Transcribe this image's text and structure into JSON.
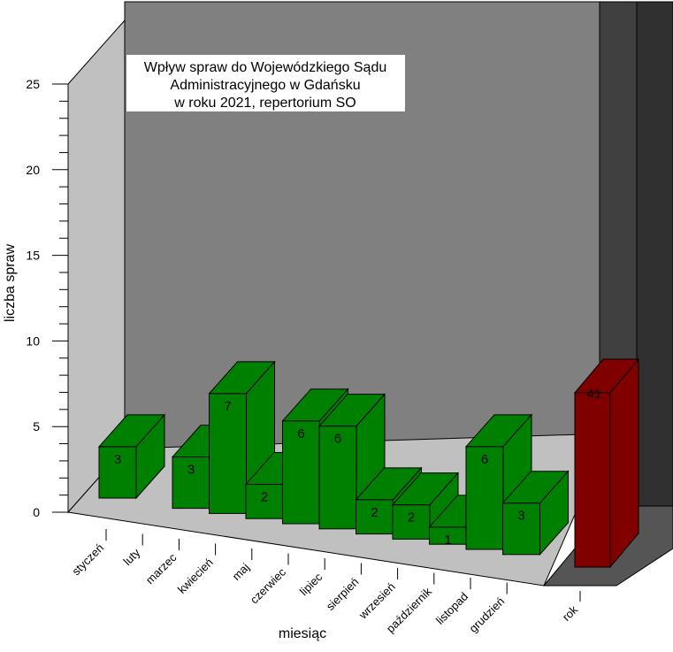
{
  "chart_data": {
    "type": "bar",
    "title_lines": [
      "Wpływ spraw do Wojewódzkiego Sądu",
      "Administracyjnego w Gdańsku",
      "w roku 2021, repertorium SO"
    ],
    "xlabel": "miesiąc",
    "ylabel": "liczba spraw",
    "ylim": [
      0,
      25
    ],
    "yticks": [
      "0",
      "5",
      "10",
      "15",
      "20",
      "25"
    ],
    "categories": [
      "styczeń",
      "luty",
      "marzec",
      "kwiecień",
      "maj",
      "czerwiec",
      "lipiec",
      "sierpień",
      "wrzesień",
      "październik",
      "listopad",
      "grudzień"
    ],
    "values": [
      3,
      0,
      3,
      7,
      2,
      6,
      6,
      2,
      2,
      1,
      6,
      3
    ],
    "value_labels": [
      "3",
      "",
      "3",
      "7",
      "2",
      "6",
      "6",
      "2",
      "2",
      "1",
      "6",
      "3"
    ],
    "total": {
      "category": "rok",
      "value": 41,
      "label": "41"
    },
    "colors": {
      "month_bar": "#008000",
      "total_bar": "#800000",
      "back_wall": "#808080",
      "side_wall": "#c0c0c0",
      "floor": "#c0c0c0",
      "total_wall": "#404040"
    },
    "grid": false,
    "view": "3d"
  }
}
